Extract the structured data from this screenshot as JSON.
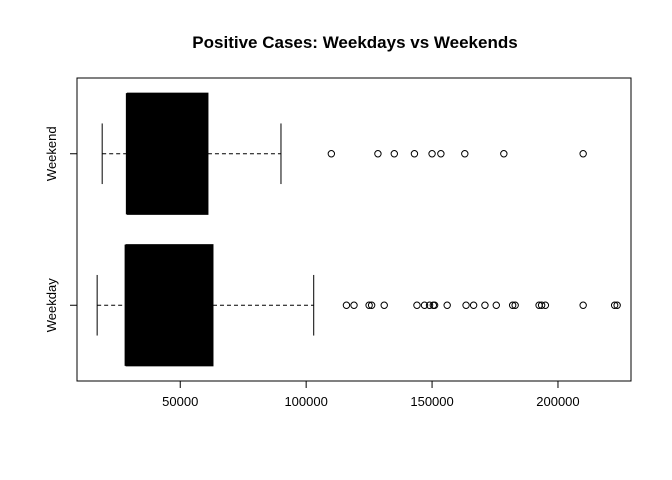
{
  "chart_data": {
    "type": "boxplot",
    "orientation": "horizontal",
    "title": "Positive Cases: Weekdays vs Weekends",
    "xlabel": "",
    "ylabel": "",
    "xlim": [
      9000,
      229000
    ],
    "x_ticks": [
      50000,
      100000,
      150000,
      200000
    ],
    "x_tick_labels": [
      "50000",
      "100000",
      "150000",
      "200000"
    ],
    "categories": [
      "Weekday",
      "Weekend"
    ],
    "boxes": [
      {
        "name": "Weekday",
        "whisker_low": 17000,
        "q1": 28500,
        "median": 28500,
        "q3": 63000,
        "whisker_high": 103000,
        "outliers": [
          116000,
          119000,
          125000,
          126000,
          131000,
          144000,
          147000,
          149000,
          150500,
          151000,
          156000,
          163500,
          166500,
          171000,
          175500,
          182000,
          183000,
          192500,
          193500,
          195000,
          210000,
          222500,
          223500
        ]
      },
      {
        "name": "Weekend",
        "whisker_low": 19000,
        "q1": 29000,
        "median": 29000,
        "q3": 61000,
        "whisker_high": 90000,
        "outliers": [
          110000,
          128500,
          135000,
          143000,
          150000,
          153500,
          163000,
          178500,
          210000
        ]
      }
    ],
    "grid": false,
    "legend": "none"
  }
}
